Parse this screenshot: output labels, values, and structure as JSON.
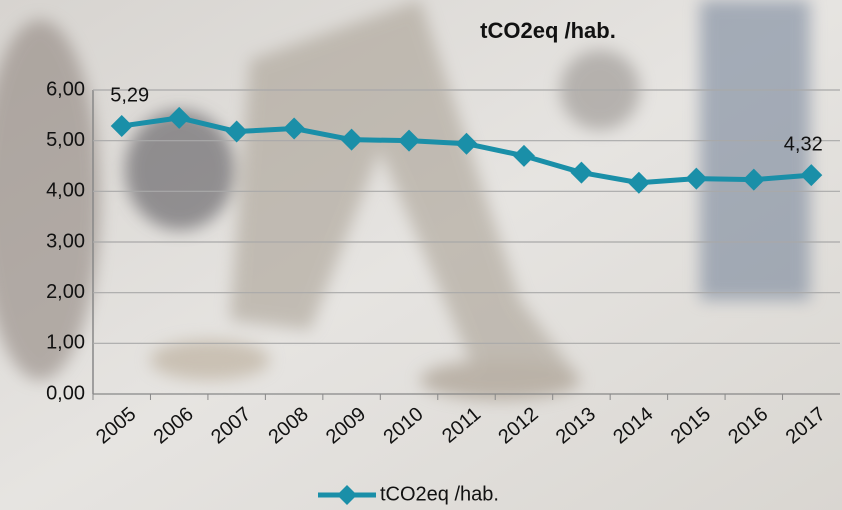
{
  "chart_data": {
    "type": "line",
    "title": "tCO2eq /hab.",
    "categories": [
      "2005",
      "2006",
      "2007",
      "2008",
      "2009",
      "2010",
      "2011",
      "2012",
      "2013",
      "2014",
      "2015",
      "2016",
      "2017"
    ],
    "series": [
      {
        "name": "tCO2eq /hab.",
        "color": "#1a8fa8",
        "values": [
          5.29,
          5.45,
          5.18,
          5.24,
          5.02,
          5.0,
          4.94,
          4.7,
          4.37,
          4.17,
          4.25,
          4.23,
          4.32
        ],
        "value_labels": [
          "5,29",
          null,
          null,
          null,
          null,
          null,
          null,
          null,
          null,
          null,
          null,
          null,
          "4,32"
        ]
      }
    ],
    "ylim": [
      0,
      6
    ],
    "yticks": [
      {
        "value": 0,
        "label": "0,00"
      },
      {
        "value": 1,
        "label": "1,00"
      },
      {
        "value": 2,
        "label": "2,00"
      },
      {
        "value": 3,
        "label": "3,00"
      },
      {
        "value": 4,
        "label": "4,00"
      },
      {
        "value": 5,
        "label": "5,00"
      },
      {
        "value": 6,
        "label": "6,00"
      }
    ],
    "grid": true,
    "legend": "bottom"
  }
}
